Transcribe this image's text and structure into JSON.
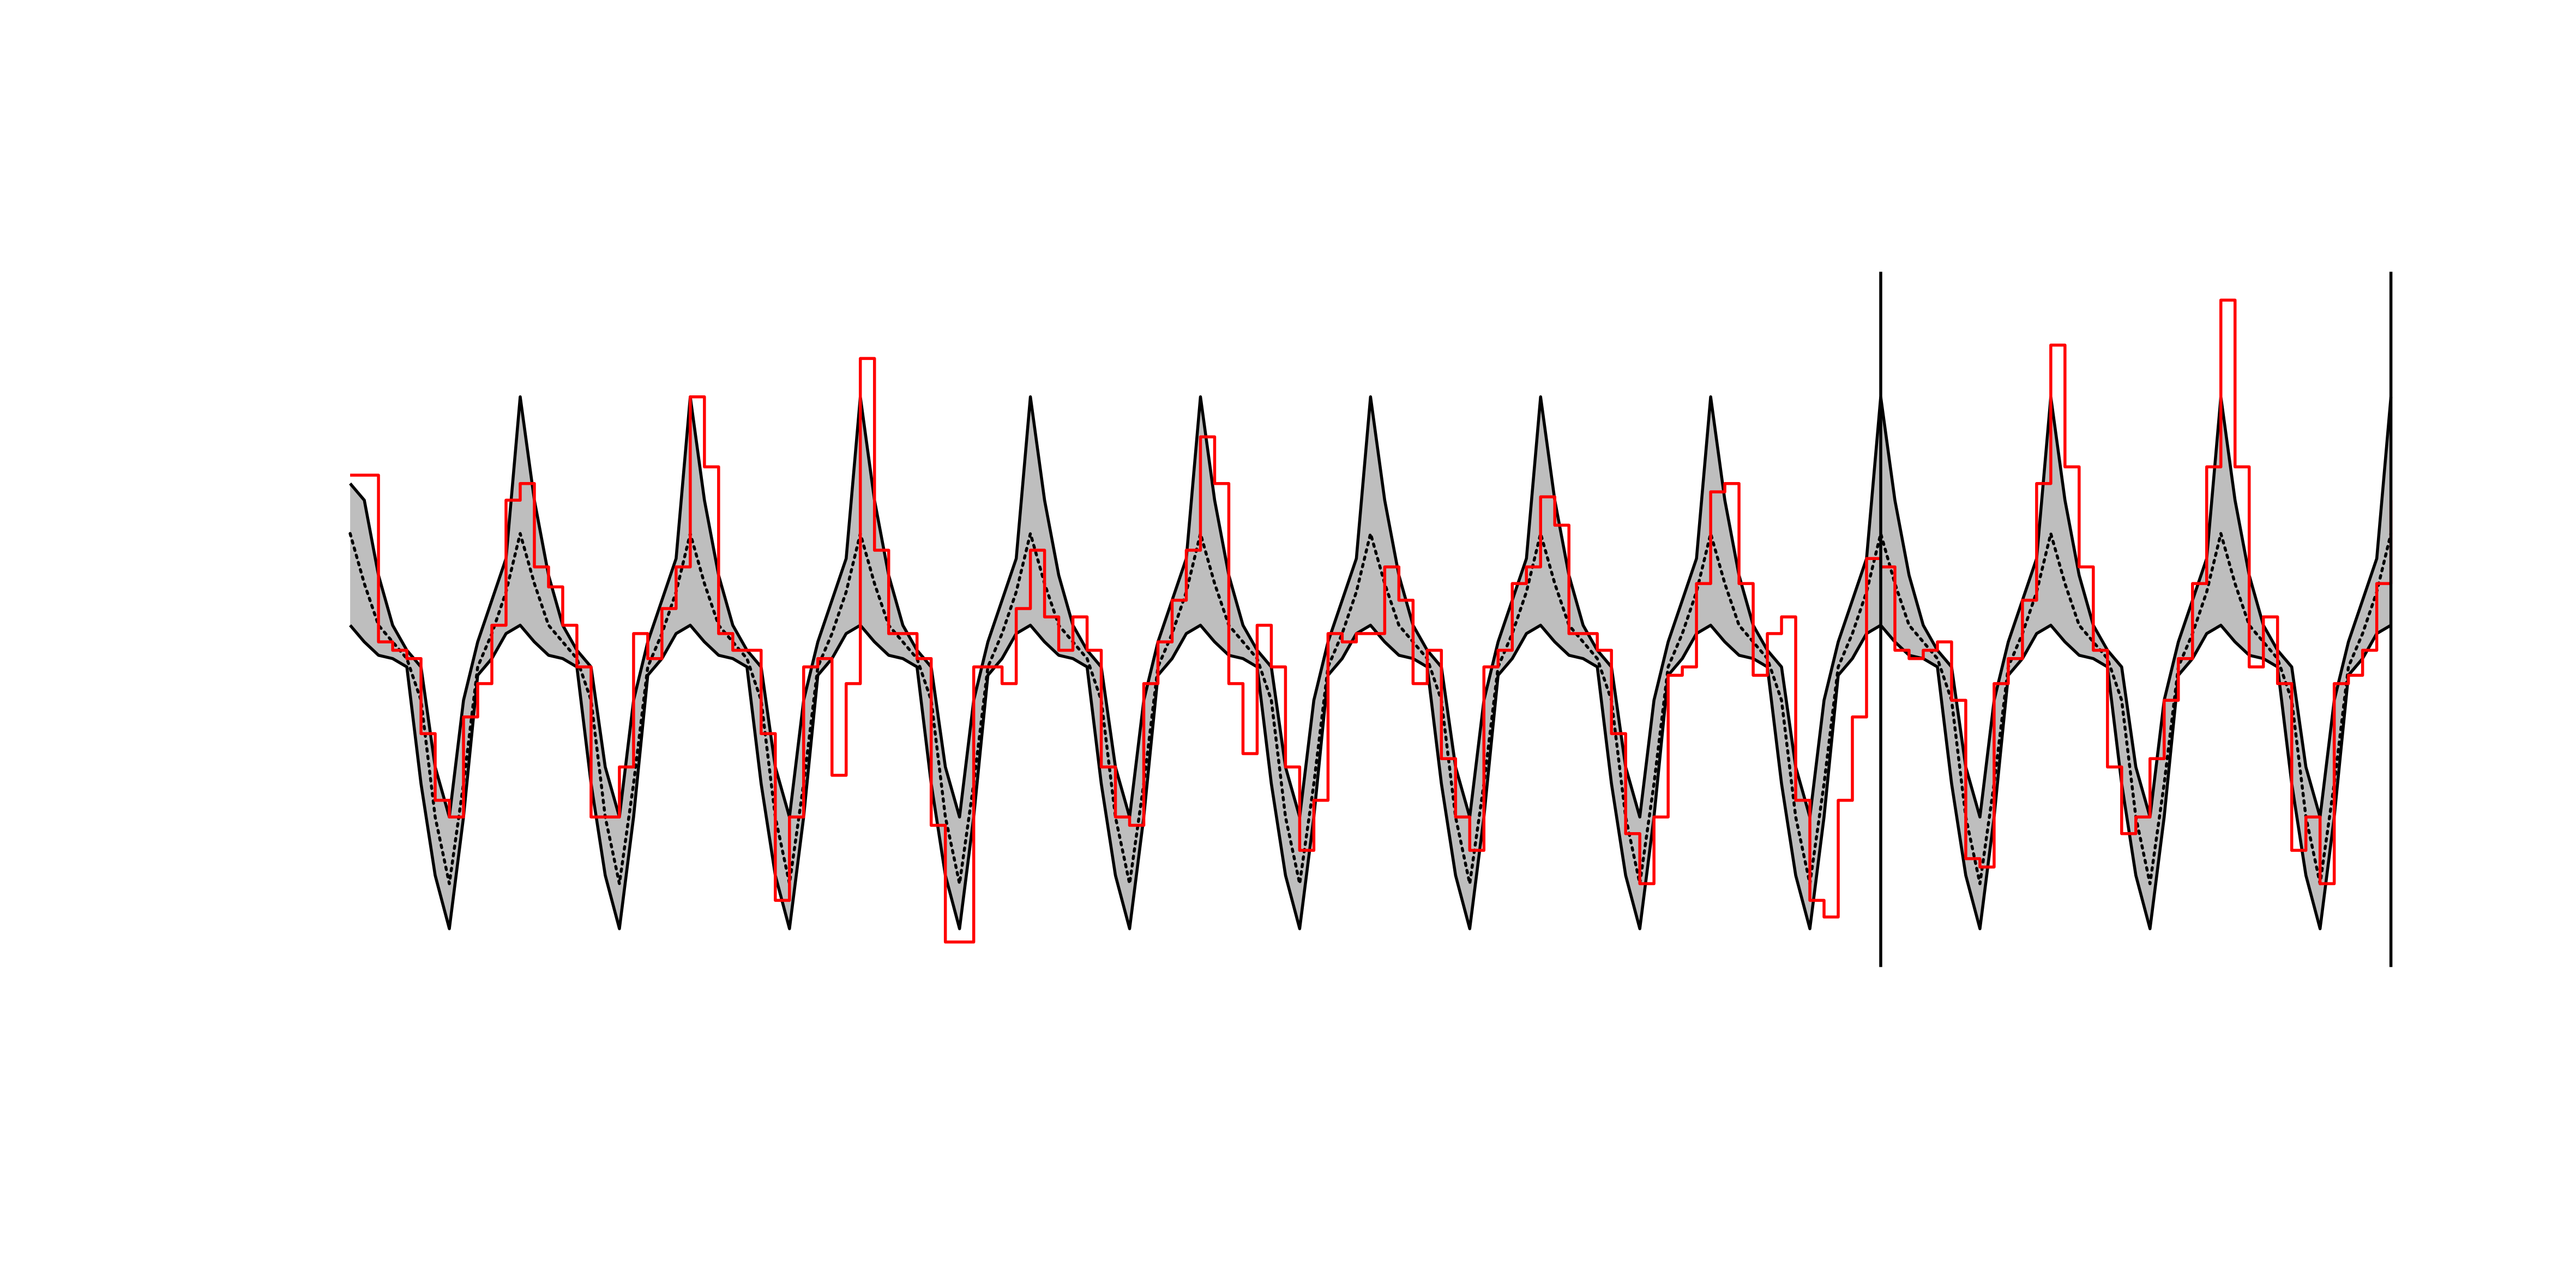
{
  "chart_data": {
    "type": "line",
    "x": [
      0,
      1,
      2,
      3,
      4,
      5,
      6,
      7,
      8,
      9,
      10,
      11,
      12,
      13,
      14,
      15,
      16,
      17,
      18,
      19,
      20,
      21,
      22,
      23,
      24,
      25,
      26,
      27,
      28,
      29,
      30,
      31,
      32,
      33,
      34,
      35,
      36,
      37,
      38,
      39,
      40,
      41,
      42,
      43,
      44,
      45,
      46,
      47,
      48,
      49,
      50,
      51,
      52,
      53,
      54,
      55,
      56,
      57,
      58,
      59,
      60,
      61,
      62,
      63,
      64,
      65,
      66,
      67,
      68,
      69,
      70,
      71,
      72,
      73,
      74,
      75,
      76,
      77,
      78,
      79,
      80,
      81,
      82,
      83,
      84,
      85,
      86,
      87,
      88,
      89,
      90,
      91,
      92,
      93,
      94,
      95,
      96,
      97,
      98,
      99,
      100,
      101,
      102,
      103,
      104,
      105,
      106,
      107,
      108,
      109,
      110,
      111,
      112,
      113,
      114,
      115,
      116,
      117,
      118,
      119,
      120,
      121,
      122,
      123,
      124,
      125,
      126,
      127,
      128,
      129,
      130,
      131,
      132,
      133,
      134,
      135,
      136,
      137,
      138,
      139,
      140,
      141,
      142,
      143,
      144
    ],
    "xlim": [
      0,
      144
    ],
    "ylim": [
      0,
      417
    ],
    "series": [
      {
        "color": "#000000",
        "dash": "solid",
        "values": [
          290,
          280,
          235,
          205,
          190,
          180,
          120,
          90,
          160,
          195,
          220,
          245,
          342,
          280,
          235,
          205,
          190,
          180,
          120,
          90,
          160,
          195,
          220,
          245,
          342,
          280,
          235,
          205,
          190,
          180,
          120,
          90,
          160,
          195,
          220,
          245,
          342,
          280,
          235,
          205,
          190,
          180,
          120,
          90,
          160,
          195,
          220,
          245,
          342,
          280,
          235,
          205,
          190,
          180,
          120,
          90,
          160,
          195,
          220,
          245,
          342,
          280,
          235,
          205,
          190,
          180,
          120,
          90,
          160,
          195,
          220,
          245,
          342,
          280,
          235,
          205,
          190,
          180,
          120,
          90,
          160,
          195,
          220,
          245,
          342,
          280,
          235,
          205,
          190,
          180,
          120,
          90,
          160,
          195,
          220,
          245,
          342,
          280,
          235,
          205,
          190,
          180,
          120,
          90,
          160,
          195,
          220,
          245,
          342,
          280,
          235,
          205,
          190,
          180,
          120,
          90,
          160,
          195,
          220,
          245,
          342,
          280,
          235,
          205,
          190,
          180,
          120,
          90,
          160,
          195,
          220,
          245,
          342,
          280,
          235,
          205,
          190,
          180,
          120,
          90,
          160,
          195,
          220,
          245,
          342
        ]
      },
      {
        "color": "#000000",
        "dash": "dotted",
        "values": [
          260,
          230,
          205,
          195,
          185,
          160,
          90,
          50,
          110,
          180,
          200,
          225,
          260,
          230,
          205,
          195,
          185,
          160,
          90,
          50,
          110,
          180,
          200,
          225,
          260,
          230,
          205,
          195,
          185,
          160,
          90,
          50,
          110,
          180,
          200,
          225,
          260,
          230,
          205,
          195,
          185,
          160,
          90,
          50,
          110,
          180,
          200,
          225,
          260,
          230,
          205,
          195,
          185,
          160,
          90,
          50,
          110,
          180,
          200,
          225,
          260,
          230,
          205,
          195,
          185,
          160,
          90,
          50,
          110,
          180,
          200,
          225,
          260,
          230,
          205,
          195,
          185,
          160,
          90,
          50,
          110,
          180,
          200,
          225,
          260,
          230,
          205,
          195,
          185,
          160,
          90,
          50,
          110,
          180,
          200,
          225,
          260,
          230,
          205,
          195,
          185,
          160,
          90,
          50,
          110,
          180,
          200,
          225,
          260,
          230,
          205,
          195,
          185,
          160,
          90,
          50,
          110,
          180,
          200,
          225,
          260,
          230,
          205,
          195,
          185,
          160,
          90,
          50,
          110,
          180,
          200,
          225,
          260,
          230,
          205,
          195,
          185,
          160,
          90,
          50,
          110,
          180,
          200,
          225,
          260
        ]
      },
      {
        "color": "#000000",
        "dash": "solid",
        "values": [
          205,
          195,
          187,
          185,
          180,
          110,
          55,
          23,
          90,
          175,
          185,
          200,
          205,
          195,
          187,
          185,
          180,
          110,
          55,
          23,
          90,
          175,
          185,
          200,
          205,
          195,
          187,
          185,
          180,
          110,
          55,
          23,
          90,
          175,
          185,
          200,
          205,
          195,
          187,
          185,
          180,
          110,
          55,
          23,
          90,
          175,
          185,
          200,
          205,
          195,
          187,
          185,
          180,
          110,
          55,
          23,
          90,
          175,
          185,
          200,
          205,
          195,
          187,
          185,
          180,
          110,
          55,
          23,
          90,
          175,
          185,
          200,
          205,
          195,
          187,
          185,
          180,
          110,
          55,
          23,
          90,
          175,
          185,
          200,
          205,
          195,
          187,
          185,
          180,
          110,
          55,
          23,
          90,
          175,
          185,
          200,
          205,
          195,
          187,
          185,
          180,
          110,
          55,
          23,
          90,
          175,
          185,
          200,
          205,
          195,
          187,
          185,
          180,
          110,
          55,
          23,
          90,
          175,
          185,
          200,
          205,
          195,
          187,
          185,
          180,
          110,
          55,
          23,
          90,
          175,
          185,
          200,
          205,
          195,
          187,
          185,
          180,
          110,
          55,
          23,
          90,
          175,
          185,
          200,
          205
        ]
      },
      {
        "color": "#ff0000",
        "dash": "solid",
        "step": true,
        "values": [
          295,
          295,
          195,
          190,
          185,
          140,
          100,
          90,
          150,
          170,
          205,
          280,
          290,
          240,
          228,
          205,
          180,
          90,
          90,
          120,
          200,
          185,
          215,
          240,
          342,
          300,
          200,
          190,
          190,
          140,
          40,
          90,
          180,
          185,
          115,
          170,
          365,
          250,
          200,
          200,
          185,
          85,
          15,
          15,
          180,
          180,
          170,
          215,
          250,
          210,
          190,
          210,
          190,
          120,
          90,
          85,
          170,
          195,
          220,
          250,
          318,
          290,
          170,
          128,
          205,
          180,
          120,
          70,
          100,
          200,
          195,
          200,
          200,
          240,
          220,
          170,
          190,
          125,
          90,
          70,
          180,
          190,
          230,
          240,
          282,
          265,
          200,
          200,
          190,
          140,
          80,
          50,
          90,
          175,
          180,
          230,
          285,
          290,
          230,
          175,
          200,
          210,
          100,
          40,
          30,
          100,
          150,
          245,
          240,
          190,
          185,
          190,
          195,
          160,
          65,
          60,
          170,
          185,
          220,
          290,
          373,
          300,
          240,
          190,
          120,
          80,
          90,
          125,
          160,
          185,
          230,
          300,
          400,
          300,
          180,
          210,
          170,
          70,
          90,
          50,
          170,
          175,
          190,
          230,
          280
        ]
      }
    ],
    "band": {
      "between": [
        0,
        2
      ],
      "color": "#bebebe"
    },
    "vlines": [
      108,
      144
    ],
    "vline_color": "#000000"
  }
}
